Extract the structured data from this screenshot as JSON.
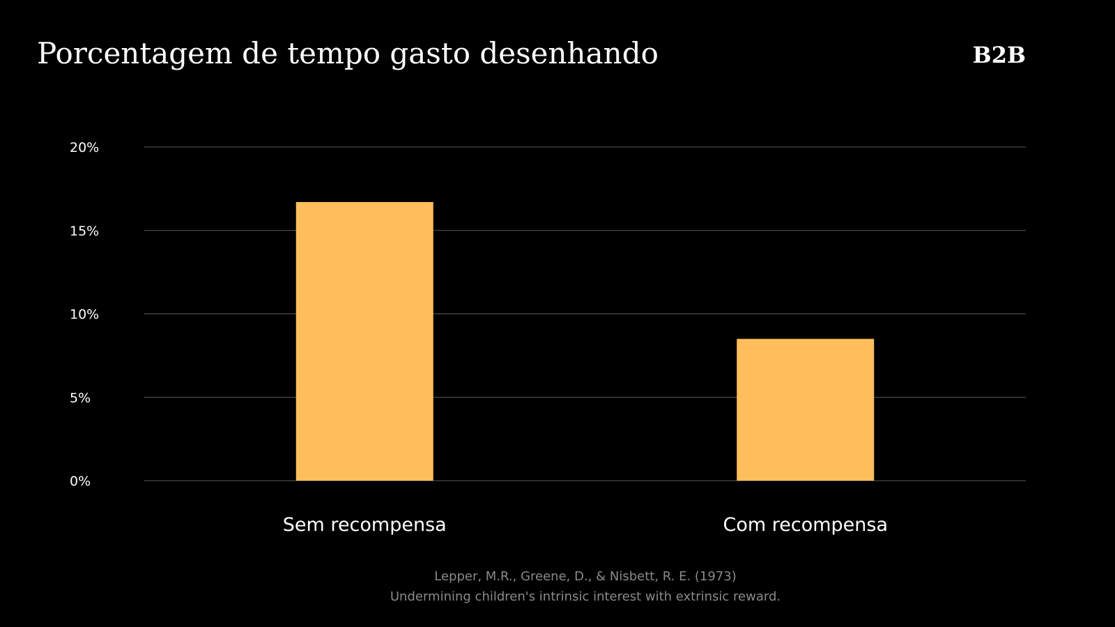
{
  "header": {
    "title": "Porcentagem de tempo gasto desenhando",
    "logo": "B2B"
  },
  "colors": {
    "background": "#000000",
    "bar": "#FFBE5C",
    "grid": "#5a5a5a",
    "text": "#ffffff",
    "source_text": "#8a8a8a"
  },
  "chart_data": {
    "type": "bar",
    "categories": [
      "Sem recompensa",
      "Com recompensa"
    ],
    "values": [
      16.7,
      8.5
    ],
    "ylim": [
      0,
      20
    ],
    "yticks": [
      0,
      5,
      10,
      15,
      20
    ],
    "ytick_labels": [
      "0%",
      "5%",
      "10%",
      "15%",
      "20%"
    ],
    "grid": true,
    "title": "",
    "xlabel": "",
    "ylabel": ""
  },
  "source": {
    "line1": "Lepper, M.R., Greene, D., & Nisbett, R. E. (1973)",
    "line2": "Undermining children's intrinsic interest with extrinsic reward."
  }
}
